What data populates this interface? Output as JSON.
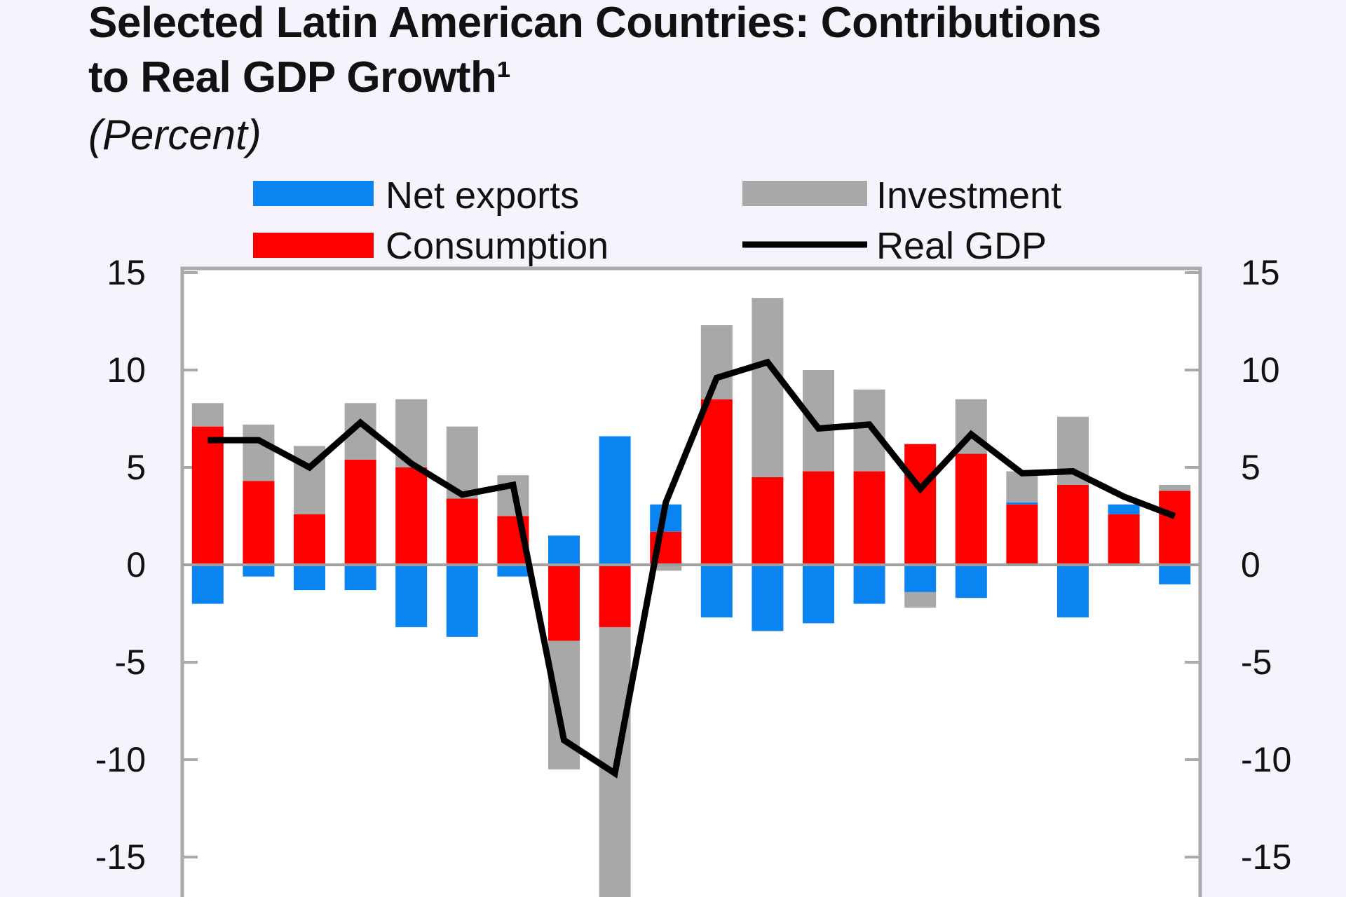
{
  "chart_data": {
    "type": "bar",
    "stacked": true,
    "title": "Selected Latin American Countries: Contributions to Real GDP Growth¹",
    "title_line1": "Selected Latin American Countries: Contributions",
    "title_line2": "to Real GDP Growth¹",
    "subtitle": "(Percent)",
    "ylim": [
      -15,
      15
    ],
    "yticks": [
      "15",
      "10",
      "5",
      "0",
      "-5",
      "-10",
      "-15"
    ],
    "legend_position": "top",
    "colors": {
      "Net exports": "#0a84f0",
      "Consumption": "#fe0000",
      "Investment": "#a8a8a8",
      "Real GDP": "#000000"
    },
    "series": [
      {
        "name": "Net exports",
        "type": "bar",
        "values": [
          -2.0,
          -0.6,
          -1.3,
          -1.3,
          -3.2,
          -3.7,
          -0.6,
          1.5,
          6.6,
          1.4,
          -2.7,
          -3.4,
          -3.0,
          -2.0,
          -1.4,
          -1.7,
          0.1,
          -2.7,
          0.5,
          -1.0
        ]
      },
      {
        "name": "Consumption",
        "type": "bar",
        "values": [
          7.1,
          4.3,
          2.6,
          5.4,
          5.0,
          3.4,
          2.5,
          -3.9,
          -3.2,
          1.7,
          8.5,
          4.5,
          4.8,
          4.8,
          6.2,
          5.7,
          3.1,
          4.1,
          2.6,
          3.8
        ]
      },
      {
        "name": "Investment",
        "type": "bar",
        "values": [
          1.2,
          2.9,
          3.5,
          2.9,
          3.5,
          3.7,
          2.1,
          -6.6,
          -14.1,
          -0.3,
          3.8,
          9.2,
          5.2,
          4.2,
          -0.8,
          2.8,
          1.6,
          3.5,
          0.0,
          0.3
        ]
      },
      {
        "name": "Real GDP",
        "type": "line",
        "values": [
          6.4,
          6.4,
          5.0,
          7.3,
          5.2,
          3.6,
          4.1,
          -9.0,
          -10.7,
          3.2,
          9.6,
          10.4,
          7.0,
          7.2,
          3.9,
          6.7,
          4.7,
          4.8,
          3.5,
          2.5
        ]
      }
    ]
  }
}
